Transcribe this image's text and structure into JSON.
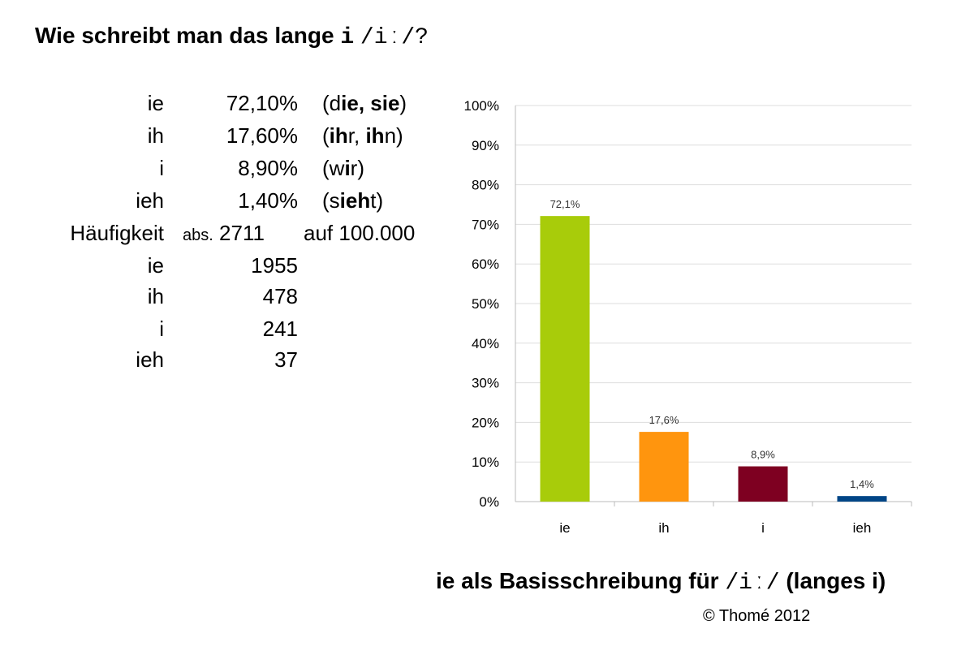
{
  "title": {
    "text": "Wie schreibt man das lange ",
    "glyph": "i",
    "ipa": "/iː/?"
  },
  "table": {
    "percent_rows": [
      {
        "label": "ie",
        "value": "72,10%",
        "ex_open": "(d",
        "ex_b1": "ie",
        "ex_mid": ", s",
        "ex_b2": "ie",
        "ex_close": ")"
      },
      {
        "label": "ih",
        "value": "17,60%",
        "ex_open": "(",
        "ex_b1": "ih",
        "ex_mid": "r, ",
        "ex_b2": "ih",
        "ex_close": "n)"
      },
      {
        "label": "i",
        "value": "8,90%",
        "ex_open": "(w",
        "ex_b1": "i",
        "ex_mid": "r)",
        "ex_b2": "",
        "ex_close": ""
      },
      {
        "label": "ieh",
        "value": "1,40%",
        "ex_open": "(s",
        "ex_b1": "ieh",
        "ex_mid": "t)",
        "ex_b2": "",
        "ex_close": ""
      }
    ],
    "frequency": {
      "label": "Häufigkeit",
      "prefix": "abs.",
      "value": "2711",
      "suffix": "auf 100.000"
    },
    "count_rows": [
      {
        "label": "ie",
        "value": "1955"
      },
      {
        "label": "ih",
        "value": "478"
      },
      {
        "label": "i",
        "value": "241"
      },
      {
        "label": "ieh",
        "value": "37"
      }
    ]
  },
  "chart_data": {
    "type": "bar",
    "categories": [
      "ie",
      "ih",
      "i",
      "ieh"
    ],
    "values": [
      72.1,
      17.6,
      8.9,
      1.4
    ],
    "data_labels": [
      "72,1%",
      "17,6%",
      "8,9%",
      "1,4%"
    ],
    "colors": [
      "#a8cc0a",
      "#ff950e",
      "#7e0021",
      "#004586"
    ],
    "ylim": [
      0,
      100
    ],
    "yticks": [
      "0%",
      "10%",
      "20%",
      "30%",
      "40%",
      "50%",
      "60%",
      "70%",
      "80%",
      "90%",
      "100%"
    ],
    "grid": true,
    "gridline_color": "#dddddd"
  },
  "subtitle": {
    "lead": "ie  als Basisschreibung für ",
    "ipa": "/iː/",
    "tail": " (langes i)"
  },
  "copyright": "© Thomé 2012"
}
